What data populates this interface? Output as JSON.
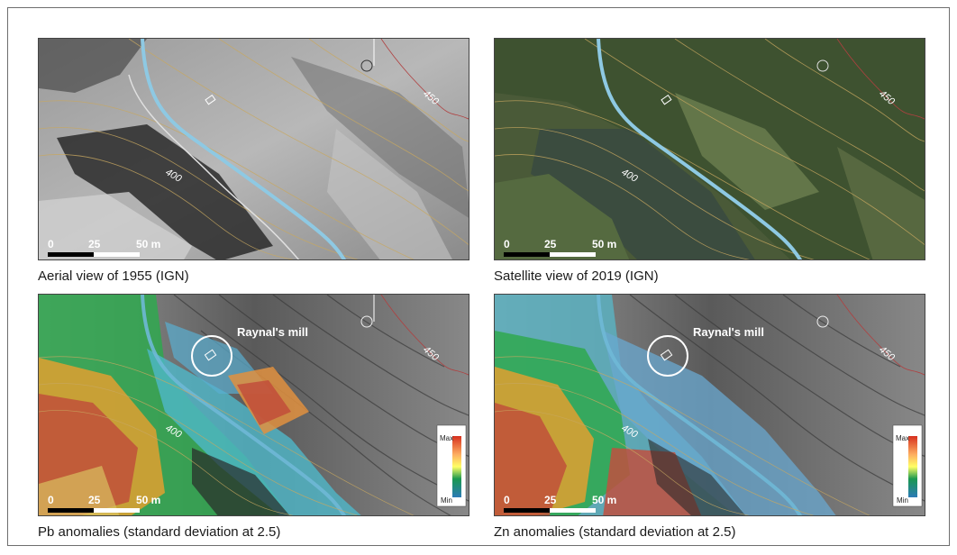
{
  "panels": [
    {
      "caption": "Aerial view of 1955 (IGN)",
      "contour_a": "450",
      "contour_b": "400",
      "scale": {
        "zero": "0",
        "mid": "25",
        "end": "50 m"
      }
    },
    {
      "caption": "Satellite view of 2019 (IGN)",
      "contour_a": "450",
      "contour_b": "400",
      "scale": {
        "zero": "0",
        "mid": "25",
        "end": "50 m"
      }
    },
    {
      "caption": "Pb anomalies (standard deviation at 2.5)",
      "contour_a": "450",
      "contour_b": "400",
      "mill_label": "Raynal's mill",
      "scale": {
        "zero": "0",
        "mid": "25",
        "end": "50 m"
      },
      "legend": {
        "max": "Max",
        "min": "Min"
      }
    },
    {
      "caption": "Zn anomalies (standard deviation at 2.5)",
      "contour_a": "450",
      "contour_b": "400",
      "mill_label": "Raynal's mill",
      "scale": {
        "zero": "0",
        "mid": "25",
        "end": "50 m"
      },
      "legend": {
        "max": "Max",
        "min": "Min"
      }
    }
  ],
  "colors": {
    "river": "#8ec9e3",
    "contour": "#c8a860",
    "red_contour": "#b04040"
  }
}
